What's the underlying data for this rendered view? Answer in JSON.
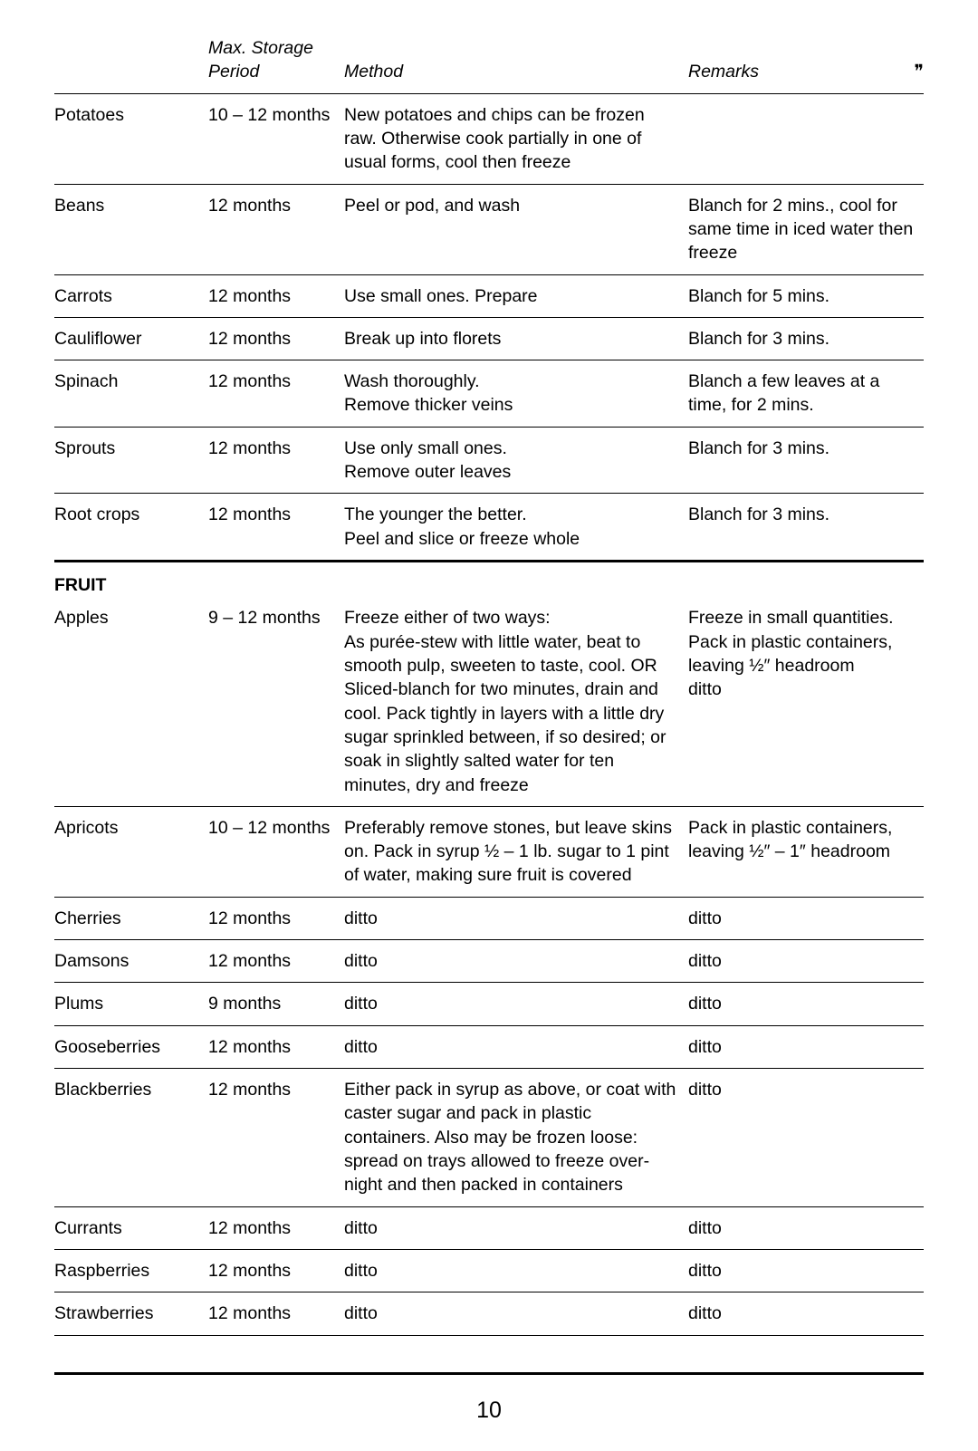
{
  "headers": {
    "item": "",
    "period_line1": "Max. Storage",
    "period_line2": "Period",
    "method": "Method",
    "remarks": "Remarks",
    "quirk": "❞"
  },
  "rows": [
    {
      "item": "Potatoes",
      "period": "10 – 12 months",
      "method": "New potatoes and chips can be frozen raw. Otherwise cook partially in one of usual forms, cool then freeze",
      "remarks": ""
    },
    {
      "item": "Beans",
      "period": "12 months",
      "method": "Peel or pod, and wash",
      "remarks": "Blanch for 2 mins., cool for same time in iced water then freeze"
    },
    {
      "item": "Carrots",
      "period": "12 months",
      "method": "Use small ones. Prepare",
      "remarks": "Blanch for 5 mins."
    },
    {
      "item": "Cauliflower",
      "period": "12 months",
      "method": "Break up into florets",
      "remarks": "Blanch for 3 mins."
    },
    {
      "item": "Spinach",
      "period": "12 months",
      "method": "Wash thoroughly.\nRemove thicker veins",
      "remarks": "Blanch a few leaves at a time, for 2 mins."
    },
    {
      "item": "Sprouts",
      "period": "12 months",
      "method": "Use only small ones.\nRemove outer leaves",
      "remarks": "Blanch for 3 mins."
    },
    {
      "item": "Root crops",
      "period": "12 months",
      "method": "The younger the better.\nPeel and slice or freeze whole",
      "remarks": "Blanch for 3 mins."
    }
  ],
  "section": {
    "label": "FRUIT"
  },
  "rows2": [
    {
      "item": "Apples",
      "period": "9 – 12 months",
      "method": "Freeze either of two ways:\nAs purée-stew with little water, beat to smooth pulp, sweeten to taste, cool. OR Sliced-blanch for two minutes, drain and cool. Pack tightly in layers with a little dry sugar sprinkled between, if so desired; or soak in slightly salted water for ten minutes, dry and freeze",
      "remarks": "Freeze in small quantities. Pack in plastic containers, leaving ½″ headroom\nditto"
    },
    {
      "item": "Apricots",
      "period": "10 – 12 months",
      "method": "Preferably remove stones, but leave skins on. Pack in syrup ½ – 1 lb. sugar to 1 pint of water, making sure fruit is covered",
      "remarks": "Pack in plastic containers, leaving ½″ – 1″ headroom"
    },
    {
      "item": "Cherries",
      "period": "12 months",
      "method": "ditto",
      "remarks": "ditto"
    },
    {
      "item": "Damsons",
      "period": "12 months",
      "method": "ditto",
      "remarks": "ditto"
    },
    {
      "item": "Plums",
      "period": "9 months",
      "method": "ditto",
      "remarks": "ditto"
    },
    {
      "item": "Gooseberries",
      "period": "12 months",
      "method": "ditto",
      "remarks": "ditto"
    },
    {
      "item": "Blackberries",
      "period": "12 months",
      "method": "Either pack in syrup as above, or coat with caster sugar and pack in plastic containers. Also may be frozen loose: spread on trays allowed to freeze over-night and then packed in containers",
      "remarks": "ditto"
    },
    {
      "item": "Currants",
      "period": "12 months",
      "method": "ditto",
      "remarks": "ditto"
    },
    {
      "item": "Raspberries",
      "period": "12 months",
      "method": "ditto",
      "remarks": "ditto"
    },
    {
      "item": "Strawberries",
      "period": "12 months",
      "method": "ditto",
      "remarks": "ditto"
    }
  ],
  "pageNumber": "10"
}
